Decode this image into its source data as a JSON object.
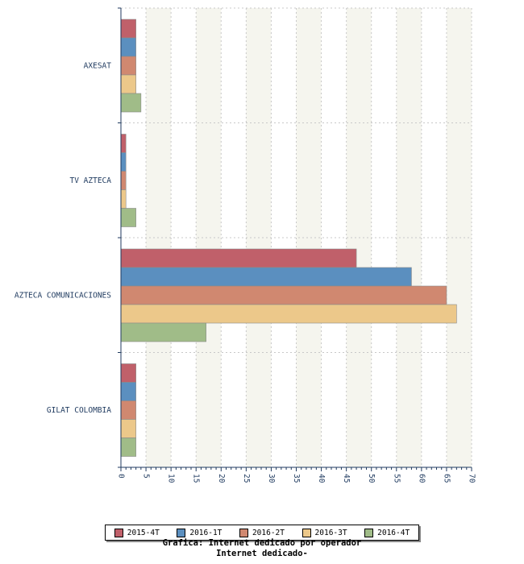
{
  "chart_data": {
    "type": "bar",
    "orientation": "horizontal",
    "categories": [
      "AXESAT",
      "TV AZTECA",
      "AZTECA COMUNICACIONES",
      "GILAT COLOMBIA"
    ],
    "series": [
      {
        "name": "2015-4T",
        "color": "#c0606a",
        "values": [
          3,
          1,
          47,
          3
        ]
      },
      {
        "name": "2016-1T",
        "color": "#5b8fbf",
        "values": [
          3,
          1,
          58,
          3
        ]
      },
      {
        "name": "2016-2T",
        "color": "#d08870",
        "values": [
          3,
          1,
          65,
          3
        ]
      },
      {
        "name": "2016-3T",
        "color": "#ecc88a",
        "values": [
          3,
          1,
          67,
          3
        ]
      },
      {
        "name": "2016-4T",
        "color": "#a0bc88",
        "values": [
          4,
          3,
          17,
          3
        ]
      }
    ],
    "xlim": [
      0,
      70
    ],
    "xticks": [
      "0",
      "5",
      "10",
      "15",
      "20",
      "25",
      "30",
      "35",
      "40",
      "45",
      "50",
      "55",
      "60",
      "65",
      "70"
    ],
    "grid": true,
    "legend_position": "bottom",
    "caption_lines": [
      "Grafica: Internet dedicado por operador",
      "Internet dedicado-"
    ]
  }
}
